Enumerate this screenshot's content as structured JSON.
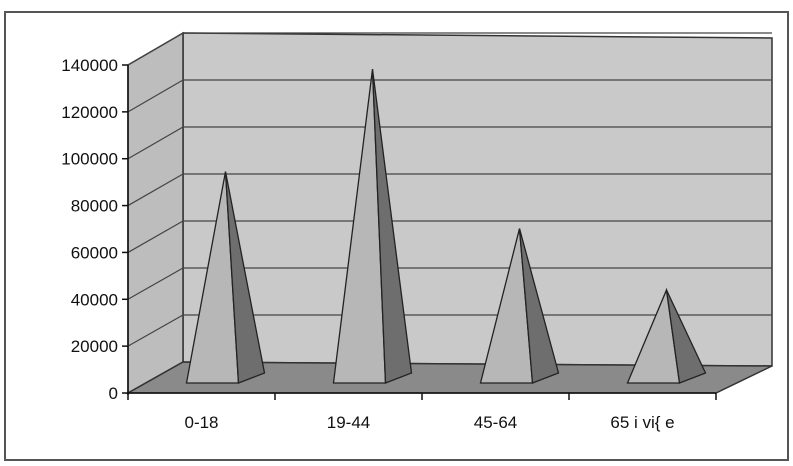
{
  "chart_data": {
    "type": "bar",
    "bar_shape": "pyramid-3d",
    "categories": [
      "0-18",
      "19-44",
      "45-64",
      "65 i vi{ e"
    ],
    "values": [
      92000,
      137000,
      67000,
      40000
    ],
    "ylim": [
      0,
      140000
    ],
    "yticks": [
      "0",
      "20000",
      "40000",
      "60000",
      "80000",
      "100000",
      "120000",
      "140000"
    ],
    "grid": true,
    "legend": "none"
  }
}
